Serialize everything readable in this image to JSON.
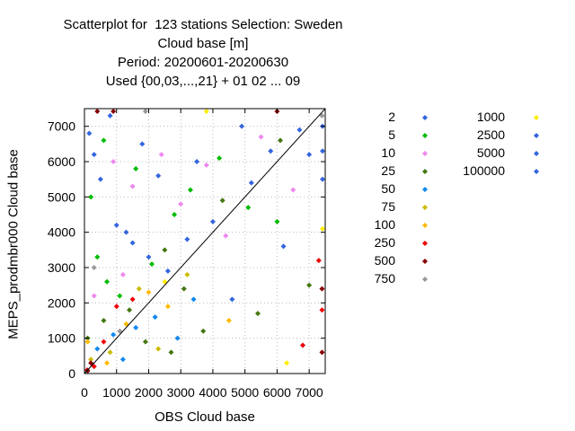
{
  "chart_data": {
    "type": "scatter",
    "title_lines": [
      "Scatterplot for  123 stations Selection: Sweden",
      "Cloud base [m]",
      "Period: 20200601-20200630",
      "Used {00,03,...,21} + 01 02 ... 09"
    ],
    "xlabel": "OBS Cloud base",
    "ylabel": "MEPS_prodmbr000 Cloud base",
    "xlim": [
      0,
      7500
    ],
    "ylim": [
      0,
      7500
    ],
    "x_ticks": [
      "0",
      "1000",
      "2000",
      "3000",
      "4000",
      "5000",
      "6000",
      "7000"
    ],
    "y_ticks": [
      "0",
      "1000",
      "2000",
      "3000",
      "4000",
      "5000",
      "6000",
      "7000"
    ],
    "y_tick_values": [
      0,
      1000,
      2000,
      3000,
      4000,
      5000,
      6000,
      7000
    ],
    "x_tick_values": [
      0,
      1000,
      2000,
      3000,
      4000,
      5000,
      6000,
      7000
    ],
    "diagonal": true,
    "grid": "dotted",
    "legend_placement": "right",
    "series": [
      {
        "name": "2",
        "color": "#3366dd"
      },
      {
        "name": "5",
        "color": "#00bb00"
      },
      {
        "name": "10",
        "color": "#ee88ee"
      },
      {
        "name": "25",
        "color": "#447711"
      },
      {
        "name": "50",
        "color": "#1188ee"
      },
      {
        "name": "75",
        "color": "#ccbb00"
      },
      {
        "name": "100",
        "color": "#ffbb00"
      },
      {
        "name": "250",
        "color": "#ee0000"
      },
      {
        "name": "500",
        "color": "#880000"
      },
      {
        "name": "750",
        "color": "#999999"
      },
      {
        "name": "1000",
        "color": "#ffee00"
      },
      {
        "name": "2500",
        "color": "#3366dd"
      },
      {
        "name": "5000",
        "color": "#3366dd"
      },
      {
        "name": "100000",
        "color": "#3366dd"
      }
    ],
    "points": [
      {
        "s": 1,
        "x": 150,
        "y": 6800
      },
      {
        "s": 1,
        "x": 300,
        "y": 6200
      },
      {
        "s": 1,
        "x": 500,
        "y": 5500
      },
      {
        "s": 1,
        "x": 1000,
        "y": 4200
      },
      {
        "s": 1,
        "x": 1300,
        "y": 4000
      },
      {
        "s": 1,
        "x": 1500,
        "y": 3700
      },
      {
        "s": 1,
        "x": 2000,
        "y": 3300
      },
      {
        "s": 1,
        "x": 2600,
        "y": 2900
      },
      {
        "s": 1,
        "x": 3200,
        "y": 3800
      },
      {
        "s": 1,
        "x": 4000,
        "y": 4300
      },
      {
        "s": 1,
        "x": 4600,
        "y": 2100
      },
      {
        "s": 1,
        "x": 5200,
        "y": 5400
      },
      {
        "s": 1,
        "x": 5800,
        "y": 6300
      },
      {
        "s": 1,
        "x": 6200,
        "y": 3600
      },
      {
        "s": 1,
        "x": 6700,
        "y": 6900
      },
      {
        "s": 1,
        "x": 3500,
        "y": 6000
      },
      {
        "s": 1,
        "x": 2300,
        "y": 5600
      },
      {
        "s": 1,
        "x": 800,
        "y": 7300
      },
      {
        "s": 1,
        "x": 1800,
        "y": 6500
      },
      {
        "s": 1,
        "x": 4900,
        "y": 7000
      },
      {
        "s": 2,
        "x": 200,
        "y": 5000
      },
      {
        "s": 2,
        "x": 400,
        "y": 3300
      },
      {
        "s": 2,
        "x": 700,
        "y": 2600
      },
      {
        "s": 2,
        "x": 1100,
        "y": 2200
      },
      {
        "s": 2,
        "x": 2100,
        "y": 3100
      },
      {
        "s": 2,
        "x": 2800,
        "y": 4500
      },
      {
        "s": 2,
        "x": 3300,
        "y": 5200
      },
      {
        "s": 2,
        "x": 4200,
        "y": 6100
      },
      {
        "s": 2,
        "x": 5100,
        "y": 4700
      },
      {
        "s": 2,
        "x": 6000,
        "y": 4300
      },
      {
        "s": 2,
        "x": 1600,
        "y": 5800
      },
      {
        "s": 2,
        "x": 600,
        "y": 6600
      },
      {
        "s": 3,
        "x": 900,
        "y": 6000
      },
      {
        "s": 3,
        "x": 1500,
        "y": 5300
      },
      {
        "s": 3,
        "x": 2400,
        "y": 6200
      },
      {
        "s": 3,
        "x": 3000,
        "y": 4800
      },
      {
        "s": 3,
        "x": 3800,
        "y": 5900
      },
      {
        "s": 3,
        "x": 4400,
        "y": 3900
      },
      {
        "s": 3,
        "x": 5500,
        "y": 6700
      },
      {
        "s": 3,
        "x": 6500,
        "y": 5200
      },
      {
        "s": 3,
        "x": 300,
        "y": 2200
      },
      {
        "s": 3,
        "x": 1200,
        "y": 2800
      },
      {
        "s": 4,
        "x": 100,
        "y": 1000
      },
      {
        "s": 4,
        "x": 600,
        "y": 1500
      },
      {
        "s": 4,
        "x": 1400,
        "y": 1800
      },
      {
        "s": 4,
        "x": 2500,
        "y": 3500
      },
      {
        "s": 4,
        "x": 3100,
        "y": 2400
      },
      {
        "s": 4,
        "x": 3700,
        "y": 1200
      },
      {
        "s": 4,
        "x": 4300,
        "y": 4900
      },
      {
        "s": 4,
        "x": 5400,
        "y": 1700
      },
      {
        "s": 4,
        "x": 6100,
        "y": 6600
      },
      {
        "s": 4,
        "x": 7000,
        "y": 2500
      },
      {
        "s": 4,
        "x": 1900,
        "y": 900
      },
      {
        "s": 4,
        "x": 2700,
        "y": 600
      },
      {
        "s": 5,
        "x": 400,
        "y": 700
      },
      {
        "s": 5,
        "x": 900,
        "y": 1100
      },
      {
        "s": 5,
        "x": 1600,
        "y": 1300
      },
      {
        "s": 5,
        "x": 2200,
        "y": 1600
      },
      {
        "s": 5,
        "x": 2900,
        "y": 1000
      },
      {
        "s": 5,
        "x": 3400,
        "y": 2100
      },
      {
        "s": 5,
        "x": 1200,
        "y": 400
      },
      {
        "s": 6,
        "x": 200,
        "y": 400
      },
      {
        "s": 6,
        "x": 800,
        "y": 600
      },
      {
        "s": 6,
        "x": 1700,
        "y": 2400
      },
      {
        "s": 6,
        "x": 2300,
        "y": 700
      },
      {
        "s": 6,
        "x": 3200,
        "y": 2800
      },
      {
        "s": 7,
        "x": 100,
        "y": 900
      },
      {
        "s": 7,
        "x": 700,
        "y": 300
      },
      {
        "s": 7,
        "x": 1300,
        "y": 1400
      },
      {
        "s": 7,
        "x": 2000,
        "y": 2300
      },
      {
        "s": 7,
        "x": 2600,
        "y": 1900
      },
      {
        "s": 7,
        "x": 4500,
        "y": 1500
      },
      {
        "s": 8,
        "x": 50,
        "y": 100
      },
      {
        "s": 8,
        "x": 300,
        "y": 200
      },
      {
        "s": 8,
        "x": 600,
        "y": 900
      },
      {
        "s": 8,
        "x": 1000,
        "y": 1900
      },
      {
        "s": 8,
        "x": 1500,
        "y": 2100
      },
      {
        "s": 8,
        "x": 7400,
        "y": 1800
      },
      {
        "s": 8,
        "x": 7300,
        "y": 3200
      },
      {
        "s": 8,
        "x": 6800,
        "y": 800
      },
      {
        "s": 9,
        "x": 100,
        "y": 50
      },
      {
        "s": 9,
        "x": 200,
        "y": 300
      },
      {
        "s": 9,
        "x": 400,
        "y": 7450
      },
      {
        "s": 9,
        "x": 900,
        "y": 7450
      },
      {
        "s": 9,
        "x": 7400,
        "y": 600
      },
      {
        "s": 9,
        "x": 7400,
        "y": 2400
      },
      {
        "s": 9,
        "x": 6000,
        "y": 7450
      },
      {
        "s": 10,
        "x": 1900,
        "y": 7450
      },
      {
        "s": 10,
        "x": 300,
        "y": 3000
      },
      {
        "s": 10,
        "x": 1100,
        "y": 1200
      },
      {
        "s": 10,
        "x": 7400,
        "y": 7300
      },
      {
        "s": 11,
        "x": 7450,
        "y": 4100
      },
      {
        "s": 11,
        "x": 6300,
        "y": 300
      },
      {
        "s": 11,
        "x": 2500,
        "y": 2600
      },
      {
        "s": 11,
        "x": 3800,
        "y": 7450
      },
      {
        "s": 12,
        "x": 7450,
        "y": 5500
      },
      {
        "s": 12,
        "x": 7000,
        "y": 6200
      },
      {
        "s": 13,
        "x": 7450,
        "y": 6300
      },
      {
        "s": 14,
        "x": 7450,
        "y": 7000
      }
    ]
  }
}
